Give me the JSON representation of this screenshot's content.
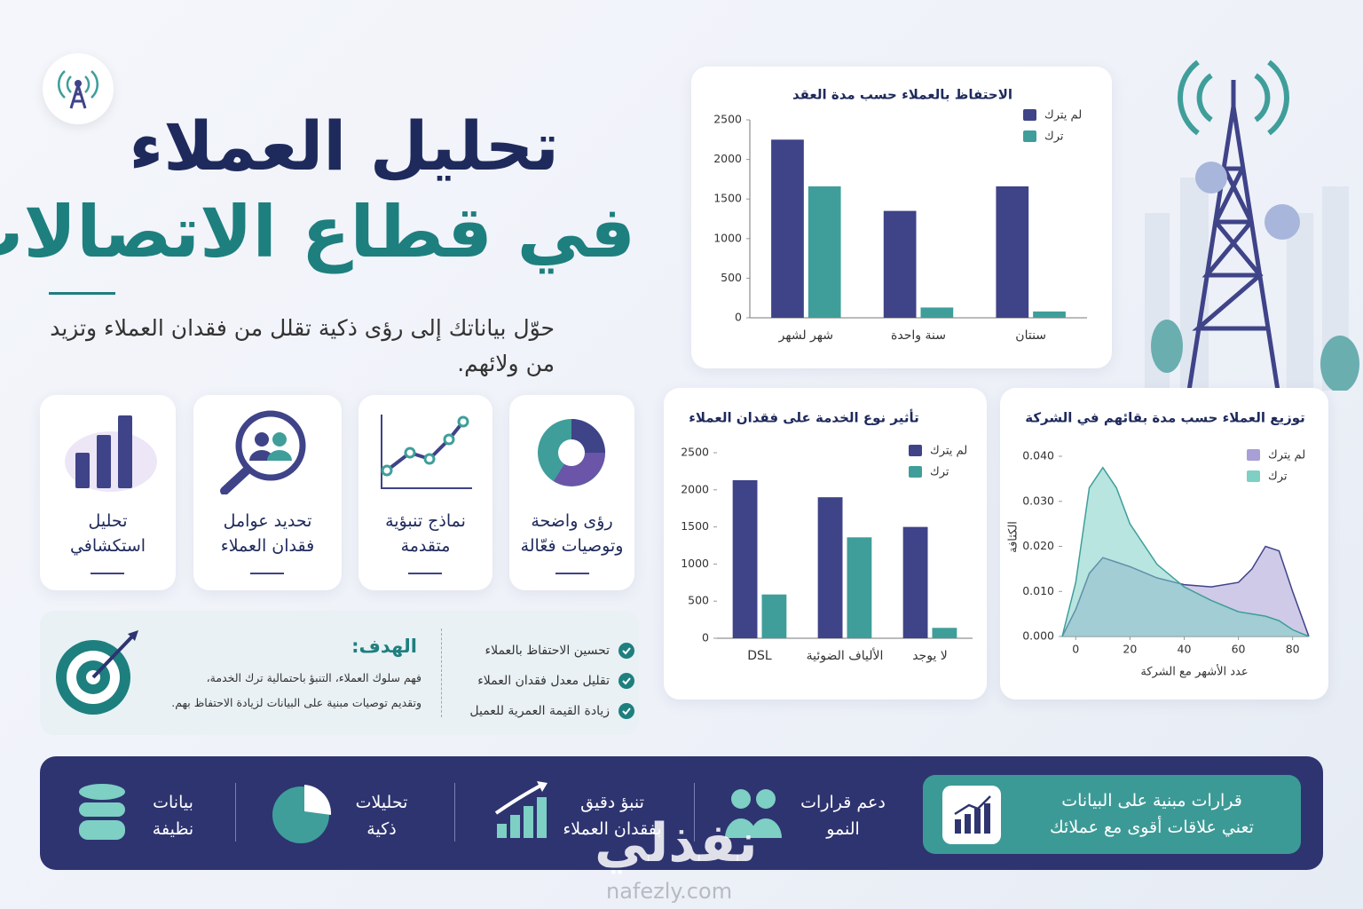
{
  "header": {
    "title_line1": "تحليل العملاء",
    "title_line2": "في قطاع الاتصالات",
    "subtitle": "حوّل بياناتك إلى رؤى ذكية تقلل من فقدان العملاء وتزيد من ولائهم."
  },
  "cards": [
    {
      "lines": [
        "رؤى واضحة",
        "وتوصيات فعّالة"
      ]
    },
    {
      "lines": [
        "نماذج تنبؤية",
        "متقدمة"
      ]
    },
    {
      "lines": [
        "تحديد عوامل",
        "فقدان العملاء"
      ]
    },
    {
      "lines": [
        "تحليل",
        "استكشافي"
      ]
    }
  ],
  "goal": {
    "title": "الهدف:",
    "lines": [
      "فهم سلوك العملاء، التنبؤ باحتمالية ترك الخدمة،",
      "وتقديم توصيات مبنية على البيانات لزيادة الاحتفاظ بهم."
    ],
    "checklist": [
      "تحسين الاحتفاظ بالعملاء",
      "تقليل معدل فقدان العملاء",
      "زيادة القيمة العمرية للعميل"
    ]
  },
  "footer": {
    "highlight": [
      "قرارات مبنية على البيانات",
      "تعني علاقات أقوى مع عملائك"
    ],
    "items": [
      [
        "دعم قرارات",
        "النمو"
      ],
      [
        "تنبؤ دقيق",
        "بفقدان العملاء"
      ],
      [
        "تحليلات",
        "ذكية"
      ],
      [
        "بيانات",
        "نظيفة"
      ]
    ]
  },
  "watermark": {
    "text": "نفذلي",
    "url": "nafezly.com"
  },
  "chart_data": [
    {
      "type": "bar",
      "title": "الاحتفاظ بالعملاء حسب مدة العقد",
      "categories": [
        "شهر لشهر",
        "سنة واحدة",
        "سنتان"
      ],
      "series": [
        {
          "name": "لم يترك",
          "color": "#3f4388",
          "values": [
            2250,
            1350,
            1660
          ]
        },
        {
          "name": "ترك",
          "color": "#3f9e9a",
          "values": [
            1660,
            130,
            80
          ]
        }
      ],
      "ylim": [
        0,
        2500
      ],
      "yticks": [
        0,
        500,
        1000,
        1500,
        2000,
        2500
      ]
    },
    {
      "type": "bar",
      "title": "تأثير نوع الخدمة على فقدان العملاء",
      "categories": [
        "DSL",
        "الألياف الضوئية",
        "لا يوجد"
      ],
      "series": [
        {
          "name": "لم يترك",
          "color": "#3f4388",
          "values": [
            2130,
            1900,
            1500
          ]
        },
        {
          "name": "ترك",
          "color": "#3f9e9a",
          "values": [
            590,
            1360,
            140
          ]
        }
      ],
      "ylim": [
        0,
        2500
      ],
      "yticks": [
        0,
        500,
        1000,
        1500,
        2000,
        2500
      ]
    },
    {
      "type": "area",
      "title": "توزيع العملاء حسب مدة بقائهم في الشركة",
      "x_label": "عدد الأشهر مع الشركة",
      "y_label": "الكثافة",
      "x": [
        -5,
        0,
        5,
        10,
        15,
        20,
        30,
        40,
        50,
        60,
        65,
        70,
        75,
        80,
        86
      ],
      "series": [
        {
          "name": "لم يترك",
          "color": "#a79fd6",
          "values": [
            0,
            0.006,
            0.014,
            0.0175,
            0.0165,
            0.0155,
            0.013,
            0.0115,
            0.011,
            0.012,
            0.015,
            0.02,
            0.019,
            0.01,
            0
          ]
        },
        {
          "name": "ترك",
          "color": "#7ecfc4",
          "values": [
            0,
            0.012,
            0.033,
            0.0375,
            0.033,
            0.025,
            0.016,
            0.011,
            0.008,
            0.0055,
            0.005,
            0.0045,
            0.0035,
            0.0015,
            0
          ]
        }
      ],
      "xlim": [
        -5,
        86
      ],
      "xticks": [
        0,
        20,
        40,
        60,
        80
      ],
      "ylim": [
        0,
        0.04
      ],
      "yticks": [
        {
          "value": 0,
          "label": "0.000"
        },
        {
          "value": 0.01,
          "label": "0.010"
        },
        {
          "value": 0.02,
          "label": "0.020"
        },
        {
          "value": 0.03,
          "label": "0.030"
        },
        {
          "value": 0.04,
          "label": "0.040"
        }
      ]
    }
  ]
}
